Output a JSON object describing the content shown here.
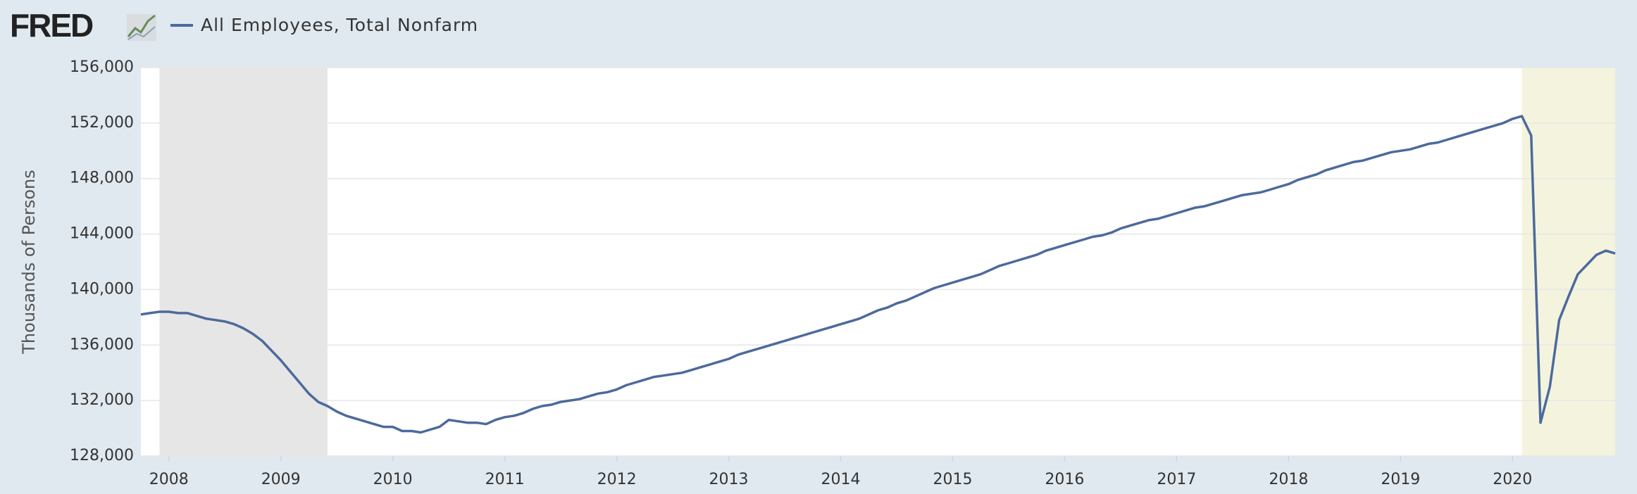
{
  "header": {
    "logo": "FRED"
  },
  "chart_data": {
    "type": "line",
    "ylabel": "Thousands of Persons",
    "categories": [
      null,
      null,
      null,
      "2008",
      null,
      null,
      null,
      null,
      null,
      null,
      null,
      null,
      null,
      null,
      null,
      "2009",
      null,
      null,
      null,
      null,
      null,
      null,
      null,
      null,
      null,
      null,
      null,
      "2010",
      null,
      null,
      null,
      null,
      null,
      null,
      null,
      null,
      null,
      null,
      null,
      "2011",
      null,
      null,
      null,
      null,
      null,
      null,
      null,
      null,
      null,
      null,
      null,
      "2012",
      null,
      null,
      null,
      null,
      null,
      null,
      null,
      null,
      null,
      null,
      null,
      "2013",
      null,
      null,
      null,
      null,
      null,
      null,
      null,
      null,
      null,
      null,
      null,
      "2014",
      null,
      null,
      null,
      null,
      null,
      null,
      null,
      null,
      null,
      null,
      null,
      "2015",
      null,
      null,
      null,
      null,
      null,
      null,
      null,
      null,
      null,
      null,
      null,
      "2016",
      null,
      null,
      null,
      null,
      null,
      null,
      null,
      null,
      null,
      null,
      null,
      "2017",
      null,
      null,
      null,
      null,
      null,
      null,
      null,
      null,
      null,
      null,
      null,
      "2018",
      null,
      null,
      null,
      null,
      null,
      null,
      null,
      null,
      null,
      null,
      null,
      "2019",
      null,
      null,
      null,
      null,
      null,
      null,
      null,
      null,
      null,
      null,
      null,
      "2020",
      null,
      null,
      null,
      null,
      null,
      null,
      null,
      null,
      null,
      null,
      null
    ],
    "series": [
      {
        "name": "All Employees, Total Nonfarm",
        "color": "#4c6a9c",
        "values": [
          138200,
          138300,
          138400,
          138400,
          138300,
          138300,
          138100,
          137900,
          137800,
          137700,
          137500,
          137200,
          136800,
          136300,
          135600,
          134900,
          134100,
          133300,
          132500,
          131900,
          131600,
          131200,
          130900,
          130700,
          130500,
          130300,
          130100,
          130100,
          129800,
          129800,
          129700,
          129900,
          130100,
          130600,
          130500,
          130400,
          130400,
          130300,
          130600,
          130800,
          130900,
          131100,
          131400,
          131600,
          131700,
          131900,
          132000,
          132100,
          132300,
          132500,
          132600,
          132800,
          133100,
          133300,
          133500,
          133700,
          133800,
          133900,
          134000,
          134200,
          134400,
          134600,
          134800,
          135000,
          135300,
          135500,
          135700,
          135900,
          136100,
          136300,
          136500,
          136700,
          136900,
          137100,
          137300,
          137500,
          137700,
          137900,
          138200,
          138500,
          138700,
          139000,
          139200,
          139500,
          139800,
          140100,
          140300,
          140500,
          140700,
          140900,
          141100,
          141400,
          141700,
          141900,
          142100,
          142300,
          142500,
          142800,
          143000,
          143200,
          143400,
          143600,
          143800,
          143900,
          144100,
          144400,
          144600,
          144800,
          145000,
          145100,
          145300,
          145500,
          145700,
          145900,
          146000,
          146200,
          146400,
          146600,
          146800,
          146900,
          147000,
          147200,
          147400,
          147600,
          147900,
          148100,
          148300,
          148600,
          148800,
          149000,
          149200,
          149300,
          149500,
          149700,
          149900,
          150000,
          150100,
          150300,
          150500,
          150600,
          150800,
          151000,
          151200,
          151400,
          151600,
          151800,
          152000,
          152300,
          152500,
          151100,
          130400,
          133000,
          137800,
          139500,
          141100,
          141800,
          142500,
          142800,
          142600
        ]
      }
    ],
    "recessions": [
      {
        "start": 2,
        "end": 20,
        "color": "#e6e6e6"
      },
      {
        "start": 148,
        "end": 158,
        "color": "#f4f4de"
      }
    ],
    "ylim": [
      128000,
      156000
    ],
    "yticks": [
      {
        "value": 128000,
        "label": "128,000"
      },
      {
        "value": 132000,
        "label": "132,000"
      },
      {
        "value": 136000,
        "label": "136,000"
      },
      {
        "value": 140000,
        "label": "140,000"
      },
      {
        "value": 144000,
        "label": "144,000"
      },
      {
        "value": 148000,
        "label": "148,000"
      },
      {
        "value": 152000,
        "label": "152,000"
      },
      {
        "value": 156000,
        "label": "156,000"
      }
    ],
    "grid": true
  }
}
